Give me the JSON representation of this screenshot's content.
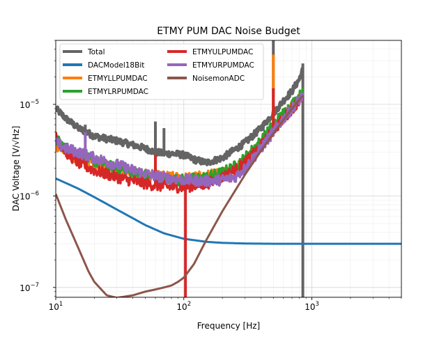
{
  "chart_data": {
    "type": "line",
    "title": "ETMY PUM DAC Noise Budget",
    "xlabel": "Frequency [Hz]",
    "ylabel": "DAC Voltage [V/√Hz]",
    "xscale": "log",
    "yscale": "log",
    "xlim": [
      10,
      5000
    ],
    "ylim": [
      7.8e-08,
      5e-05
    ],
    "grid": true,
    "legend_position": "top-left",
    "legend_columns": 2,
    "x_ticks": [
      {
        "value": 10,
        "base": "10",
        "exp": "1"
      },
      {
        "value": 100,
        "base": "10",
        "exp": "2"
      },
      {
        "value": 1000,
        "base": "10",
        "exp": "3"
      }
    ],
    "y_ticks": [
      {
        "value": 1e-07,
        "base": "10",
        "exp": "−7"
      },
      {
        "value": 1e-06,
        "base": "10",
        "exp": "−6"
      },
      {
        "value": 1e-05,
        "base": "10",
        "exp": "−5"
      }
    ],
    "series": [
      {
        "name": "Total",
        "color": "#646464",
        "x": [
          10,
          12,
          15,
          20,
          25,
          30,
          40,
          50,
          60,
          70,
          80,
          90,
          100,
          120,
          150,
          200,
          250,
          300,
          400,
          500,
          600,
          700,
          800,
          850
        ],
        "y": [
          9e-06,
          7e-06,
          5.5e-06,
          4.5e-06,
          4.2e-06,
          4e-06,
          3.6e-06,
          3.3e-06,
          3e-06,
          2.9e-06,
          2.9e-06,
          2.85e-06,
          2.8e-06,
          2.5e-06,
          2.3e-06,
          2.6e-06,
          3.2e-06,
          3.8e-06,
          5.5e-06,
          8e-06,
          1.1e-05,
          1.4e-05,
          1.9e-05,
          2.4e-05
        ]
      },
      {
        "name": "DACModel18Bit",
        "color": "#1f77b4",
        "x": [
          10,
          15,
          20,
          30,
          40,
          50,
          70,
          100,
          150,
          200,
          300,
          500,
          1000,
          2000,
          5000
        ],
        "y": [
          1.55e-06,
          1.2e-06,
          9.7e-07,
          7.1e-07,
          5.7e-07,
          4.8e-07,
          3.9e-07,
          3.4e-07,
          3.15e-07,
          3.07e-07,
          3.02e-07,
          3e-07,
          3e-07,
          3e-07,
          3e-07
        ]
      },
      {
        "name": "ETMYLLPUMDAC",
        "color": "#ff7f0e",
        "x": [
          10,
          12,
          15,
          20,
          30,
          40,
          60,
          80,
          100,
          150,
          200,
          250,
          300,
          400,
          500,
          600,
          700,
          850
        ],
        "y": [
          3.5e-06,
          2.9e-06,
          2.6e-06,
          2.3e-06,
          2e-06,
          1.8e-06,
          1.65e-06,
          1.6e-06,
          1.55e-06,
          1.65e-06,
          1.8e-06,
          2e-06,
          2.4e-06,
          3.8e-06,
          5.5e-06,
          7.5e-06,
          9.5e-06,
          1.3e-05
        ]
      },
      {
        "name": "ETMYLRPUMDAC",
        "color": "#2ca02c",
        "x": [
          10,
          12,
          15,
          20,
          30,
          40,
          60,
          80,
          100,
          150,
          200,
          250,
          300,
          400,
          500,
          600,
          700,
          850
        ],
        "y": [
          4.2e-06,
          3.3e-06,
          2.8e-06,
          2.4e-06,
          2e-06,
          1.8e-06,
          1.6e-06,
          1.5e-06,
          1.5e-06,
          1.6e-06,
          1.8e-06,
          2.1e-06,
          2.6e-06,
          4e-06,
          6e-06,
          8e-06,
          1e-05,
          1.35e-05
        ]
      },
      {
        "name": "ETMYULPUMDAC",
        "color": "#d62728",
        "x": [
          10,
          12,
          15,
          20,
          30,
          40,
          60,
          80,
          100,
          150,
          200,
          250,
          300,
          400,
          500,
          600,
          700,
          850
        ],
        "y": [
          4.5e-06,
          3e-06,
          2.3e-06,
          1.9e-06,
          1.6e-06,
          1.45e-06,
          1.3e-06,
          1.25e-06,
          1.25e-06,
          1.35e-06,
          1.6e-06,
          1.9e-06,
          2.3e-06,
          3.5e-06,
          5.2e-06,
          7e-06,
          9e-06,
          1.2e-05
        ]
      },
      {
        "name": "ETMYURPUMDAC",
        "color": "#9467bd",
        "x": [
          10,
          12,
          15,
          20,
          30,
          40,
          60,
          80,
          100,
          150,
          200,
          250,
          300,
          400,
          500,
          600,
          700,
          850
        ],
        "y": [
          3.8e-06,
          3.3e-06,
          3e-06,
          2.6e-06,
          2.2e-06,
          1.9e-06,
          1.65e-06,
          1.55e-06,
          1.5e-06,
          1.45e-06,
          1.5e-06,
          1.6e-06,
          2e-06,
          3.3e-06,
          5e-06,
          7e-06,
          9e-06,
          1.25e-05
        ]
      },
      {
        "name": "NoisemonADC",
        "color": "#8c564b",
        "x": [
          10,
          12,
          15,
          18,
          20,
          25,
          30,
          40,
          50,
          60,
          70,
          80,
          90,
          100,
          120,
          150,
          200,
          300,
          400,
          500,
          600,
          700,
          850
        ],
        "y": [
          1.05e-06,
          5.5e-07,
          2.7e-07,
          1.5e-07,
          1.15e-07,
          8.2e-08,
          7.7e-08,
          8.2e-08,
          9e-08,
          9.5e-08,
          1e-07,
          1.05e-07,
          1.15e-07,
          1.28e-07,
          1.8e-07,
          3.3e-07,
          6.8e-07,
          1.7e-06,
          3.1e-06,
          4.8e-06,
          6.8e-06,
          9e-06,
          1.25e-05
        ]
      }
    ],
    "spikes": [
      {
        "series": "Total",
        "x": [
          17,
          60,
          70,
          500,
          850
        ],
        "y": [
          6e-06,
          6.5e-06,
          5.5e-06,
          5e-05,
          2.8e-05
        ],
        "low_x": [
          850
        ]
      },
      {
        "series": "ETMYULPUMDAC",
        "x": [
          60,
          500
        ],
        "y": [
          2.8e-06,
          1.5e-05
        ],
        "low_x": [
          103
        ]
      },
      {
        "series": "ETMYLLPUMDAC",
        "x": [
          500
        ],
        "y": [
          3.5e-05
        ],
        "low_x": []
      },
      {
        "series": "ETMYURPUMDAC",
        "x": [
          17
        ],
        "y": [
          5e-06
        ],
        "low_x": []
      }
    ]
  }
}
